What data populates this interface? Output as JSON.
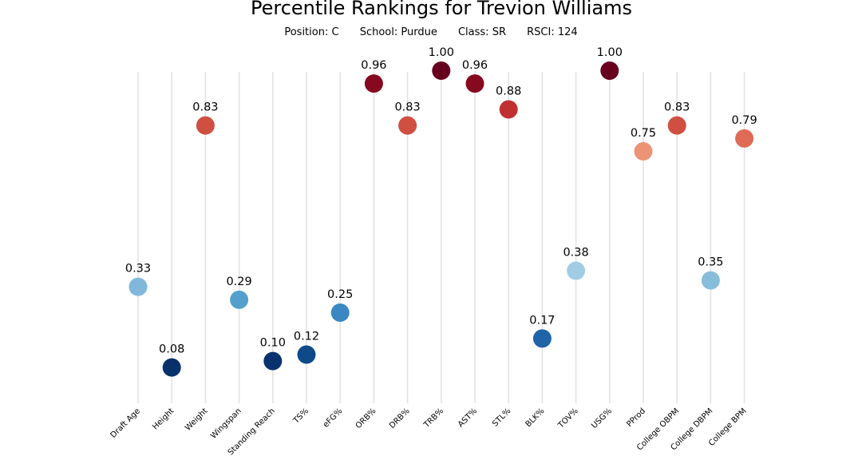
{
  "header": {
    "title": "Percentile Rankings for Trevion Williams",
    "position": "Position: C",
    "school": "School: Purdue",
    "class": "Class: SR",
    "rsci": "RSCI: 124"
  },
  "chart_data": {
    "type": "scatter",
    "title": "Percentile Rankings for Trevion Williams",
    "ylim": [
      0,
      1
    ],
    "grid": "vertical",
    "categories": [
      "Draft Age",
      "Height",
      "Weight",
      "Wingspan",
      "Standing Reach",
      "TS%",
      "eFG%",
      "ORB%",
      "DRB%",
      "TRB%",
      "AST%",
      "STL%",
      "BLK%",
      "TOV%",
      "USG%",
      "PProd",
      "College OBPM",
      "College DBPM",
      "College BPM"
    ],
    "values": [
      0.33,
      0.08,
      0.83,
      0.29,
      0.1,
      0.12,
      0.25,
      0.96,
      0.83,
      1.0,
      0.96,
      0.88,
      0.17,
      0.38,
      1.0,
      0.75,
      0.83,
      0.35,
      0.79
    ],
    "labels": [
      "0.33",
      "0.08",
      "0.83",
      "0.29",
      "0.10",
      "0.12",
      "0.25",
      "0.96",
      "0.83",
      "1.00",
      "0.96",
      "0.88",
      "0.17",
      "0.38",
      "1.00",
      "0.75",
      "0.83",
      "0.35",
      "0.79"
    ],
    "colors": [
      "#7fb8da",
      "#08306b",
      "#cf4f41",
      "#549fcd",
      "#08336e",
      "#0e4a8a",
      "#3a87c1",
      "#860920",
      "#cf4f41",
      "#67001f",
      "#860920",
      "#c03030",
      "#1f63a8",
      "#a0cde3",
      "#67001f",
      "#ec9376",
      "#cf4f41",
      "#86bdda",
      "#de6b55"
    ]
  }
}
